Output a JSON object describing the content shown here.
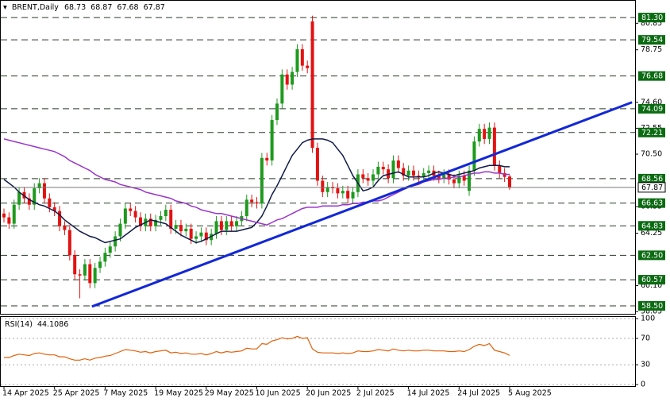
{
  "chart_data": [
    {
      "type": "candlestick",
      "title": "BRENT,Daily",
      "categories": [
        "14 Apr 2025",
        null,
        null,
        null,
        null,
        null,
        null,
        null,
        null,
        null,
        "25 Apr 2025",
        null,
        null,
        null,
        null,
        null,
        null,
        null,
        null,
        null,
        "7 May 2025",
        null,
        null,
        null,
        null,
        null,
        null,
        null,
        null,
        null,
        "19 May 2025",
        null,
        null,
        null,
        null,
        null,
        null,
        null,
        null,
        null,
        "29 May 2025",
        null,
        null,
        null,
        null,
        null,
        null,
        null,
        null,
        null,
        "10 Jun 2025",
        null,
        null,
        null,
        null,
        null,
        null,
        null,
        null,
        null,
        "20 Jun 2025",
        null,
        null,
        null,
        null,
        null,
        null,
        null,
        null,
        null,
        "2 Jul 2025",
        null,
        null,
        null,
        null,
        null,
        null,
        null,
        null,
        null,
        "14 Jul 2025",
        null,
        null,
        null,
        null,
        null,
        null,
        null,
        null,
        null,
        "24 Jul 2025",
        null,
        null,
        null,
        null,
        null,
        null,
        null,
        null,
        null,
        "5 Aug 2025"
      ],
      "open": [
        65.8,
        65.5,
        65.0,
        66.5,
        67.5,
        67.0,
        66.5,
        67.8,
        68.2,
        67.0,
        66.3,
        66.0,
        64.8,
        64.5,
        62.5,
        61.0,
        60.9,
        61.8,
        60.3,
        61.5,
        62.0,
        62.7,
        63.2,
        64.0,
        65.0,
        66.2,
        66.0,
        65.5,
        64.8,
        65.4,
        64.8,
        65.3,
        65.6,
        66.1,
        64.6,
        64.9,
        64.4,
        64.6,
        63.8,
        64.0,
        64.3,
        63.7,
        64.2,
        65.2,
        64.5,
        65.2,
        64.8,
        65.2,
        65.6,
        66.9,
        66.7,
        66.6,
        70.2,
        70.0,
        73.2,
        74.5,
        76.8,
        76.0,
        77.0,
        78.8,
        77.5,
        81.0,
        71.0,
        68.4,
        67.5,
        67.9,
        67.8,
        67.4,
        67.6,
        67.0,
        67.5,
        68.9,
        68.6,
        68.4,
        68.9,
        69.5,
        69.3,
        68.6,
        70.0,
        69.4,
        68.8,
        69.2,
        68.8,
        68.7,
        69.0,
        69.2,
        68.8,
        68.6,
        68.9,
        68.5,
        68.2,
        68.8,
        67.6,
        69.2,
        71.5,
        72.5,
        71.7,
        72.6,
        69.6,
        69.0,
        68.73
      ],
      "high": [
        66.2,
        65.9,
        66.9,
        67.9,
        67.9,
        67.4,
        68.2,
        68.6,
        68.6,
        67.4,
        66.7,
        66.4,
        65.2,
        64.9,
        62.9,
        61.4,
        62.2,
        62.2,
        61.9,
        62.4,
        63.1,
        63.6,
        64.4,
        65.4,
        66.6,
        66.6,
        66.4,
        65.9,
        65.8,
        65.8,
        65.7,
        66.0,
        66.5,
        66.5,
        65.3,
        65.3,
        65.0,
        65.0,
        64.4,
        64.7,
        64.7,
        64.6,
        65.6,
        65.6,
        65.6,
        65.6,
        65.6,
        66.0,
        67.3,
        67.3,
        67.1,
        70.6,
        70.6,
        73.6,
        74.9,
        77.2,
        77.2,
        77.4,
        79.2,
        79.2,
        77.9,
        81.45,
        71.4,
        68.8,
        68.3,
        68.3,
        68.2,
        68.0,
        68.0,
        67.9,
        69.3,
        69.3,
        69.0,
        69.3,
        69.9,
        69.9,
        69.7,
        70.4,
        70.4,
        69.8,
        69.6,
        69.6,
        69.2,
        69.4,
        69.6,
        69.6,
        69.2,
        69.3,
        69.3,
        68.9,
        69.2,
        69.2,
        69.6,
        71.9,
        72.9,
        72.9,
        73.0,
        73.0,
        70.0,
        69.4,
        68.87
      ],
      "low": [
        65.1,
        64.6,
        64.6,
        66.1,
        66.6,
        66.1,
        66.1,
        67.4,
        66.6,
        65.9,
        65.6,
        64.4,
        64.1,
        62.1,
        60.6,
        59.1,
        60.5,
        59.9,
        59.9,
        61.1,
        61.6,
        62.3,
        62.8,
        63.6,
        64.6,
        65.6,
        65.1,
        64.4,
        64.4,
        64.4,
        64.4,
        64.9,
        65.2,
        64.2,
        64.2,
        64.0,
        64.0,
        63.4,
        63.4,
        63.6,
        63.3,
        63.3,
        63.8,
        64.1,
        64.1,
        64.4,
        64.4,
        64.8,
        65.2,
        66.3,
        66.2,
        66.2,
        69.6,
        69.6,
        72.8,
        74.1,
        75.6,
        75.6,
        76.6,
        77.1,
        76.9,
        70.6,
        68.0,
        67.1,
        67.1,
        67.4,
        67.0,
        67.0,
        66.6,
        66.6,
        67.1,
        68.2,
        68.0,
        68.0,
        68.5,
        68.9,
        68.2,
        68.2,
        69.0,
        68.4,
        68.4,
        68.4,
        68.3,
        68.3,
        68.6,
        68.4,
        68.2,
        68.2,
        68.1,
        67.8,
        67.8,
        68.0,
        67.2,
        68.8,
        71.1,
        71.3,
        71.3,
        69.2,
        68.6,
        68.3,
        67.68
      ],
      "close": [
        65.5,
        65.0,
        66.5,
        67.5,
        67.0,
        66.5,
        67.8,
        68.2,
        67.0,
        66.3,
        66.0,
        64.8,
        64.5,
        62.5,
        61.0,
        60.9,
        61.8,
        60.3,
        61.5,
        62.0,
        62.7,
        63.2,
        64.0,
        65.0,
        66.2,
        66.0,
        65.5,
        64.8,
        65.4,
        64.8,
        65.3,
        65.6,
        66.1,
        64.6,
        64.9,
        64.4,
        64.6,
        63.8,
        64.0,
        64.3,
        63.7,
        64.2,
        65.2,
        64.5,
        65.2,
        64.8,
        65.2,
        65.6,
        66.9,
        66.7,
        66.6,
        70.2,
        70.0,
        73.2,
        74.5,
        76.8,
        76.0,
        77.0,
        78.8,
        77.5,
        77.3,
        71.0,
        68.4,
        67.5,
        67.9,
        67.8,
        67.4,
        67.6,
        67.0,
        67.5,
        68.9,
        68.6,
        68.4,
        68.9,
        69.5,
        69.3,
        68.6,
        70.0,
        69.4,
        68.8,
        69.2,
        68.8,
        68.7,
        69.0,
        69.2,
        68.8,
        68.6,
        68.9,
        68.5,
        68.2,
        68.8,
        68.4,
        69.2,
        71.5,
        72.5,
        71.7,
        72.6,
        69.6,
        69.0,
        68.7,
        67.87
      ],
      "up_color": "#1e9a1e",
      "down_color": "#e31212",
      "ma": [
        {
          "color": "#101a48",
          "values": [
            68.5,
            68.2,
            67.9,
            67.5,
            67.2,
            66.9,
            66.7,
            66.5,
            66.4,
            66.2,
            66.0,
            65.7,
            65.3,
            65.0,
            64.7,
            64.4,
            64.2,
            64.0,
            63.9,
            63.7,
            63.5,
            63.6,
            63.7,
            63.8,
            64.1,
            64.4,
            64.7,
            64.9,
            65.1,
            65.3,
            65.2,
            65.1,
            65.0,
            64.7,
            64.4,
            64.1,
            63.9,
            63.7,
            63.5,
            63.6,
            63.8,
            64.0,
            64.2,
            64.4,
            64.4,
            64.4,
            64.4,
            64.5,
            64.6,
            64.7,
            65.1,
            65.6,
            66.4,
            67.3,
            68.0,
            68.8,
            69.6,
            70.4,
            70.9,
            71.4,
            71.6,
            71.7,
            71.7,
            71.7,
            71.6,
            71.4,
            70.9,
            70.4,
            69.6,
            68.8,
            68.2,
            67.6,
            67.7,
            67.9,
            68.4,
            68.8,
            68.9,
            69.0,
            69.1,
            68.9,
            68.7,
            68.7,
            68.7,
            68.7,
            68.8,
            69.0,
            69.1,
            69.0,
            68.9,
            68.8,
            68.9,
            69.0,
            69.1,
            69.2,
            69.4,
            69.5,
            69.6,
            69.6,
            69.6,
            69.5,
            69.5
          ]
        },
        {
          "color": "#9a34c9",
          "values": [
            71.7,
            71.6,
            71.5,
            71.4,
            71.3,
            71.2,
            71.1,
            71.0,
            70.9,
            70.8,
            70.7,
            70.5,
            70.3,
            70.0,
            69.8,
            69.6,
            69.4,
            69.2,
            68.9,
            68.7,
            68.5,
            68.4,
            68.3,
            68.1,
            68.0,
            67.9,
            67.8,
            67.7,
            67.5,
            67.4,
            67.3,
            67.2,
            67.1,
            67.0,
            66.8,
            66.7,
            66.6,
            66.4,
            66.3,
            66.1,
            66.0,
            65.9,
            65.8,
            65.8,
            65.7,
            65.6,
            65.5,
            65.4,
            65.3,
            65.2,
            65.1,
            65.0,
            64.9,
            65.1,
            65.3,
            65.4,
            65.6,
            65.8,
            66.0,
            66.2,
            66.3,
            66.3,
            66.3,
            66.4,
            66.4,
            66.4,
            66.4,
            66.5,
            66.5,
            66.6,
            66.6,
            66.7,
            66.7,
            66.8,
            66.8,
            66.9,
            67.1,
            67.3,
            67.5,
            67.7,
            67.9,
            68.0,
            68.1,
            68.3,
            68.4,
            68.5,
            68.5,
            68.6,
            68.6,
            68.7,
            68.7,
            68.8,
            68.9,
            69.0,
            69.0,
            69.1,
            69.1,
            69.0,
            69.0,
            68.9,
            68.9
          ]
        }
      ],
      "trendline": {
        "color": "#1228d6",
        "x": [
          17.4,
          124.2
        ],
        "y": [
          58.45,
          74.6
        ]
      },
      "levels": [
        {
          "value": 81.3,
          "label": "81.30"
        },
        79.54,
        76.68,
        74.09,
        72.21,
        68.56,
        66.63,
        64.83,
        {
          "value": 62.5,
          "label": "62.50"
        },
        60.57,
        {
          "value": 58.5,
          "label": "58.50"
        }
      ],
      "level_color": "#0b6b12",
      "ylim": [
        57.81,
        82.69
      ],
      "yticks": [
        80.85,
        78.75,
        {
          "value": 74.6,
          "label": "74.60"
        },
        72.55,
        {
          "value": 70.5,
          "label": "70.50"
        },
        66.35,
        64.25,
        {
          "value": 60.1,
          "label": "60.10"
        },
        58.05
      ]
    },
    {
      "type": "line",
      "title": "RSI(14)",
      "color": "#e0600a",
      "values": [
        41,
        41,
        44,
        46,
        45,
        44,
        47,
        48,
        46,
        45,
        45,
        42,
        42,
        39,
        37,
        37,
        39,
        37,
        40,
        41,
        43,
        44,
        47,
        50,
        53,
        52,
        51,
        49,
        50,
        48,
        50,
        51,
        52,
        48,
        49,
        47,
        48,
        46,
        46,
        47,
        45,
        47,
        50,
        48,
        50,
        49,
        50,
        51,
        55,
        54,
        54,
        62,
        61,
        66,
        68,
        71,
        69,
        70,
        73,
        70,
        71,
        54,
        49,
        48,
        48,
        48,
        47,
        48,
        47,
        48,
        51,
        50,
        50,
        51,
        53,
        52,
        51,
        54,
        52,
        51,
        52,
        51,
        51,
        52,
        52,
        51,
        51,
        51,
        50,
        50,
        51,
        50,
        53,
        58,
        61,
        59,
        62,
        52,
        50,
        48,
        44.1086
      ],
      "ylim": [
        -3.6,
        103.6
      ],
      "yticks": [
        100,
        70,
        30,
        0
      ]
    }
  ]
}
